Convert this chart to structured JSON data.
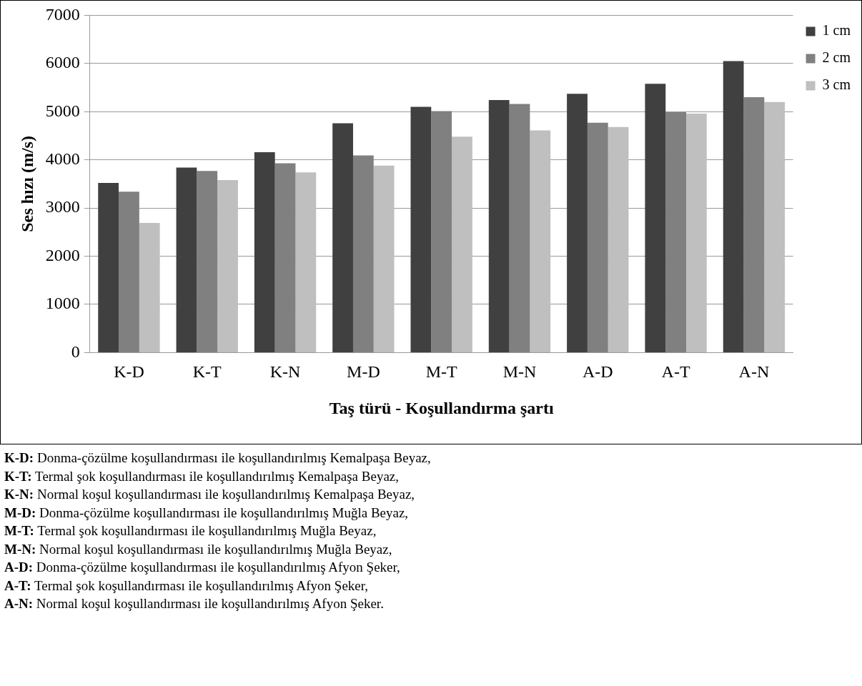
{
  "chart_data": {
    "type": "bar",
    "xlabel": "Taş türü - Koşullandırma şartı",
    "ylabel": "Ses hızı (m/s)",
    "categories": [
      "K-D",
      "K-T",
      "K-N",
      "M-D",
      "M-T",
      "M-N",
      "A-D",
      "A-T",
      "A-N"
    ],
    "series": [
      {
        "name": "1 cm",
        "color": "#404040",
        "values": [
          3520,
          3840,
          4160,
          4760,
          5100,
          5240,
          5370,
          5580,
          6050
        ]
      },
      {
        "name": "2 cm",
        "color": "#808080",
        "values": [
          3340,
          3770,
          3930,
          4090,
          5010,
          5160,
          4770,
          4990,
          5300
        ]
      },
      {
        "name": "3 cm",
        "color": "#bfbfbf",
        "values": [
          2690,
          3580,
          3740,
          3880,
          4480,
          4610,
          4680,
          4960,
          5200
        ]
      }
    ],
    "ylim": [
      0,
      7000
    ],
    "yticks": [
      0,
      1000,
      2000,
      3000,
      4000,
      5000,
      6000,
      7000
    ],
    "grid": "y",
    "legend": "top right",
    "annotations": [
      "K-D: Donma-çözülme koşullandırması ile koşullandırılmış Kemalpaşa Beyaz,",
      "K-T: Termal şok koşullandırması ile koşullandırılmış Kemalpaşa Beyaz,",
      "K-N: Normal koşul koşullandırması ile koşullandırılmış Kemalpaşa Beyaz,",
      "M-D: Donma-çözülme koşullandırması ile koşullandırılmış Muğla Beyaz,",
      "M-T: Termal şok koşullandırması ile koşullandırılmış Muğla Beyaz,",
      "M-N: Normal koşul koşullandırması ile koşullandırılmış Muğla Beyaz,",
      "A-D: Donma-çözülme koşullandırması ile koşullandırılmış Afyon Şeker,",
      "A-T: Termal şok koşullandırması ile koşullandırılmış Afyon Şeker,",
      "A-N: Normal koşul koşullandırması ile koşullandırılmış Afyon Şeker."
    ]
  }
}
